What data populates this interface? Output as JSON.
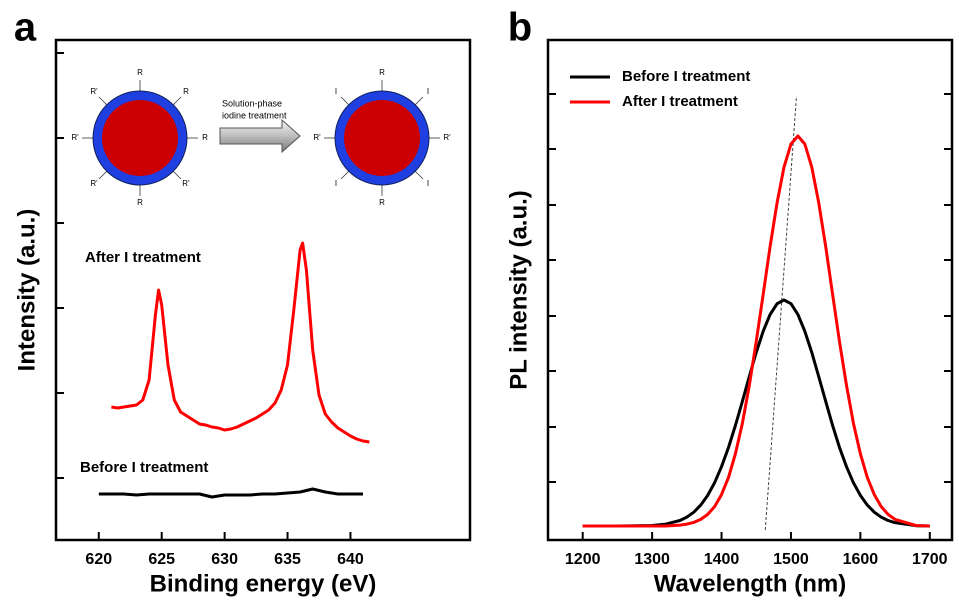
{
  "chart_data": [
    {
      "type": "line",
      "panel_label": "a",
      "xlabel": "Binding energy (eV)",
      "ylabel": "Intensity (a.u.)",
      "xlim": [
        616.6,
        649.5
      ],
      "xticks": [
        620,
        625,
        630,
        635,
        640
      ],
      "ylim": [
        0,
        500
      ],
      "yticks": [
        62,
        147,
        232,
        317,
        402,
        487
      ],
      "annotations": [
        "After I treatment",
        "Before I treatment"
      ],
      "series": [
        {
          "color": "#ff0000",
          "x": [
            621,
            621.5,
            622,
            622.5,
            623,
            623.5,
            624,
            624.5,
            624.75,
            625,
            625.5,
            626,
            626.5,
            627,
            627.5,
            628,
            628.5,
            629,
            629.5,
            630,
            630.5,
            631,
            631.5,
            632,
            632.5,
            633,
            633.5,
            634,
            634.5,
            635,
            635.5,
            636,
            636.2,
            636.5,
            637,
            637.5,
            638,
            638.5,
            639,
            639.5,
            640,
            640.5,
            641,
            641.5
          ],
          "values": [
            133,
            132,
            133,
            134,
            135,
            140,
            160,
            225,
            250,
            235,
            175,
            140,
            128,
            124,
            120,
            116,
            115,
            113,
            112,
            110,
            111,
            113,
            116,
            119,
            122,
            126,
            130,
            137,
            150,
            175,
            230,
            290,
            297,
            270,
            190,
            145,
            126,
            118,
            112,
            108,
            104,
            101,
            99,
            98
          ]
        },
        {
          "color": "#000000",
          "x": [
            620,
            621,
            622,
            623,
            624,
            625,
            626,
            627,
            628,
            629,
            630,
            631,
            632,
            633,
            634,
            635,
            636,
            637,
            638,
            639,
            640,
            641
          ],
          "values": [
            46,
            46,
            46,
            45,
            46,
            46,
            46,
            46,
            46,
            43,
            45,
            45,
            45,
            46,
            46,
            47,
            48,
            51,
            48,
            46,
            46,
            46
          ]
        }
      ],
      "inset": {
        "left_labels": [
          "R",
          "R",
          "R",
          "R'",
          "R",
          "R'",
          "R'",
          "R'"
        ],
        "right_labels": [
          "R",
          "I",
          "R'",
          "I",
          "R",
          "I",
          "R'",
          "I"
        ],
        "arrow_text": [
          "Solution-phase",
          "iodine treatment"
        ]
      }
    },
    {
      "type": "line",
      "panel_label": "b",
      "xlabel": "Wavelength (nm)",
      "ylabel": "PL intensity (a.u.)",
      "xlim": [
        1150,
        1732
      ],
      "xticks": [
        1200,
        1300,
        1400,
        1500,
        1600,
        1700
      ],
      "ylim": [
        0,
        500
      ],
      "yticks": [
        58,
        113,
        169,
        224,
        280,
        335,
        391,
        446
      ],
      "legend": "top-left",
      "reference_line": {
        "x": [
          1463,
          1508
        ],
        "y": [
          10,
          444
        ]
      },
      "series": [
        {
          "name": "Before I treatment",
          "color": "#000000",
          "x": [
            1200,
            1250,
            1300,
            1320,
            1340,
            1350,
            1360,
            1370,
            1380,
            1390,
            1400,
            1410,
            1420,
            1430,
            1440,
            1450,
            1460,
            1470,
            1480,
            1490,
            1500,
            1510,
            1520,
            1530,
            1540,
            1550,
            1560,
            1570,
            1580,
            1590,
            1600,
            1610,
            1620,
            1630,
            1640,
            1650,
            1680,
            1700
          ],
          "values": [
            14,
            14,
            14.5,
            15.9,
            19.5,
            22.9,
            27.8,
            34.9,
            44.6,
            57.3,
            73.3,
            92.5,
            114.5,
            138.7,
            163.5,
            187.5,
            208.8,
            225.5,
            236.3,
            240,
            236.3,
            225.5,
            208.8,
            187.5,
            163.5,
            138.7,
            114.5,
            92.5,
            73.3,
            57.3,
            44.6,
            34.9,
            27.8,
            22.9,
            19.5,
            17.3,
            14.3,
            14
          ]
        },
        {
          "name": "After I treatment",
          "color": "#ff0000",
          "x": [
            1200,
            1250,
            1300,
            1320,
            1340,
            1350,
            1360,
            1370,
            1380,
            1390,
            1400,
            1410,
            1420,
            1430,
            1440,
            1450,
            1460,
            1470,
            1480,
            1490,
            1500,
            1510,
            1520,
            1530,
            1540,
            1550,
            1560,
            1570,
            1580,
            1590,
            1600,
            1610,
            1620,
            1630,
            1640,
            1650,
            1680,
            1700
          ],
          "values": [
            14,
            14,
            14,
            14,
            14.9,
            15.9,
            17.6,
            20.6,
            25.6,
            33.4,
            45.4,
            62.6,
            86.2,
            116.8,
            154.6,
            198.3,
            245.7,
            293.5,
            337.4,
            372.8,
            396,
            404,
            396,
            372.8,
            337.4,
            293.5,
            245.7,
            198.3,
            154.6,
            116.8,
            86.2,
            62.6,
            45.4,
            33.4,
            25.6,
            20.6,
            14.5,
            14
          ]
        }
      ]
    }
  ]
}
